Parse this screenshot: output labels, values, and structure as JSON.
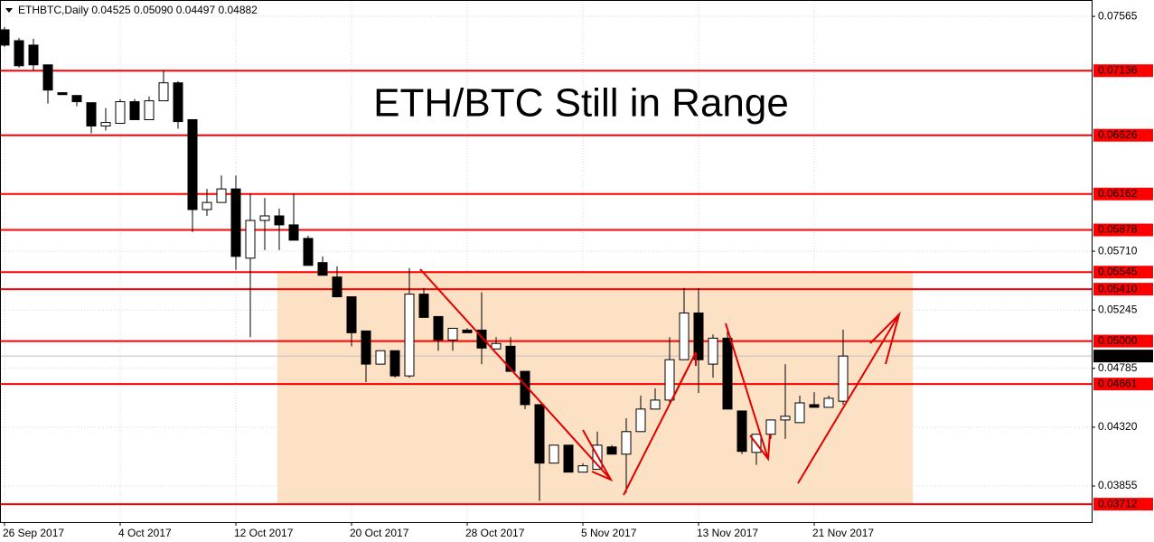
{
  "chart_data": {
    "type": "candlestick",
    "header": "ETHBTC,Daily  0.04525 0.05090 0.04497 0.04882",
    "title": "ETH/BTC Still in Range",
    "categories": [
      "26 Sep 2017",
      null,
      null,
      null,
      null,
      null,
      null,
      null,
      "4 Oct 2017",
      null,
      null,
      null,
      null,
      null,
      null,
      null,
      "12 Oct 2017",
      null,
      null,
      null,
      null,
      null,
      null,
      null,
      "20 Oct 2017",
      null,
      null,
      null,
      null,
      null,
      null,
      null,
      "28 Oct 2017",
      null,
      null,
      null,
      null,
      null,
      null,
      null,
      "5 Nov 2017",
      null,
      null,
      null,
      null,
      null,
      null,
      null,
      "13 Nov 2017",
      null,
      null,
      null,
      null,
      null,
      null,
      null,
      "21 Nov 2017",
      null,
      null
    ],
    "open": [
      0.07459,
      0.07373,
      0.07338,
      0.07182,
      0.06962,
      0.0694,
      0.06883,
      0.06699,
      0.0672,
      0.06891,
      0.06749,
      0.06898,
      0.0704,
      0.06749,
      0.06039,
      0.06095,
      0.06202,
      0.05655,
      0.05953,
      0.05989,
      0.05918,
      0.05811,
      0.0562,
      0.05506,
      0.0535,
      0.0508,
      0.04818,
      0.04924,
      0.04725,
      0.05371,
      0.05194,
      0.05009,
      0.05087,
      0.05087,
      0.04938,
      0.04959,
      0.04761,
      0.04498,
      0.04036,
      0.04178,
      0.03965,
      0.03987,
      0.04164,
      0.04107,
      0.04285,
      0.04463,
      0.04534,
      0.04853,
      0.05222,
      0.04818,
      0.05023,
      0.04448,
      0.04121,
      0.04264,
      0.04377,
      0.04356,
      0.04498,
      0.04477,
      0.04525
    ],
    "high": [
      0.0748,
      0.07395,
      0.07388,
      0.07182,
      0.06962,
      0.0694,
      0.06883,
      0.06841,
      0.06912,
      0.06912,
      0.06933,
      0.07139,
      0.07054,
      0.06749,
      0.06202,
      0.06308,
      0.06308,
      0.06166,
      0.06131,
      0.06046,
      0.06166,
      0.05833,
      0.05669,
      0.05591,
      0.0535,
      0.0508,
      0.04924,
      0.04924,
      0.05577,
      0.05421,
      0.05194,
      0.05101,
      0.05101,
      0.05385,
      0.05031,
      0.05031,
      0.04761,
      0.04498,
      0.04178,
      0.04178,
      0.04036,
      0.04285,
      0.04178,
      0.04391,
      0.04569,
      0.04626,
      0.05031,
      0.05421,
      0.05421,
      0.05052,
      0.05087,
      0.04448,
      0.04264,
      0.04377,
      0.04818,
      0.04569,
      0.04597,
      0.04569,
      0.0509
    ],
    "low": [
      0.07324,
      0.0716,
      0.07139,
      0.06876,
      0.06947,
      0.06855,
      0.06642,
      0.06663,
      0.0672,
      0.06749,
      0.06749,
      0.06898,
      0.06678,
      0.05861,
      0.05989,
      0.06095,
      0.05563,
      0.05031,
      0.05719,
      0.05719,
      0.05797,
      0.05598,
      0.0552,
      0.0535,
      0.04959,
      0.04676,
      0.04818,
      0.04711,
      0.04711,
      0.05187,
      0.04924,
      0.04924,
      0.05066,
      0.04818,
      0.04938,
      0.04761,
      0.04463,
      0.03738,
      0.04036,
      0.03965,
      0.03965,
      0.03987,
      0.04107,
      0.03802,
      0.04285,
      0.04463,
      0.04498,
      0.04853,
      0.0459,
      0.04711,
      0.04463,
      0.04107,
      0.04022,
      0.04228,
      0.04228,
      0.04356,
      0.04477,
      0.04477,
      0.04497
    ],
    "close": [
      0.07338,
      0.07175,
      0.07182,
      0.06983,
      0.06947,
      0.06891,
      0.06699,
      0.06727,
      0.06891,
      0.06749,
      0.06898,
      0.0704,
      0.06734,
      0.06039,
      0.06095,
      0.06202,
      0.05669,
      0.05953,
      0.05989,
      0.05918,
      0.05797,
      0.05598,
      0.0552,
      0.0535,
      0.05066,
      0.04818,
      0.04924,
      0.04725,
      0.05371,
      0.05187,
      0.05009,
      0.05101,
      0.05066,
      0.04945,
      0.04981,
      0.04761,
      0.04498,
      0.04036,
      0.04178,
      0.03965,
      0.04015,
      0.04178,
      0.04107,
      0.04285,
      0.04463,
      0.04534,
      0.04853,
      0.05222,
      0.04853,
      0.05023,
      0.04463,
      0.04129,
      0.04264,
      0.04377,
      0.04406,
      0.04512,
      0.04477,
      0.04548,
      0.04882
    ],
    "ylim": [
      0.0357,
      0.0768
    ],
    "yticks": [
      0.07565,
      {
        "value": 0.0571,
        "label": "0.05710"
      },
      0.05245,
      0.04785,
      {
        "value": 0.0432,
        "label": "0.04320"
      },
      0.03855
    ],
    "levels": [
      0.07136,
      0.06626,
      0.06162,
      0.05878,
      0.05545,
      {
        "value": 0.0541,
        "label": "0.05410"
      },
      {
        "value": 0.05,
        "label": "0.05000"
      },
      0.04661,
      0.03712
    ],
    "level_color": "#ff0000",
    "last_price": 0.04882,
    "grid": true
  }
}
